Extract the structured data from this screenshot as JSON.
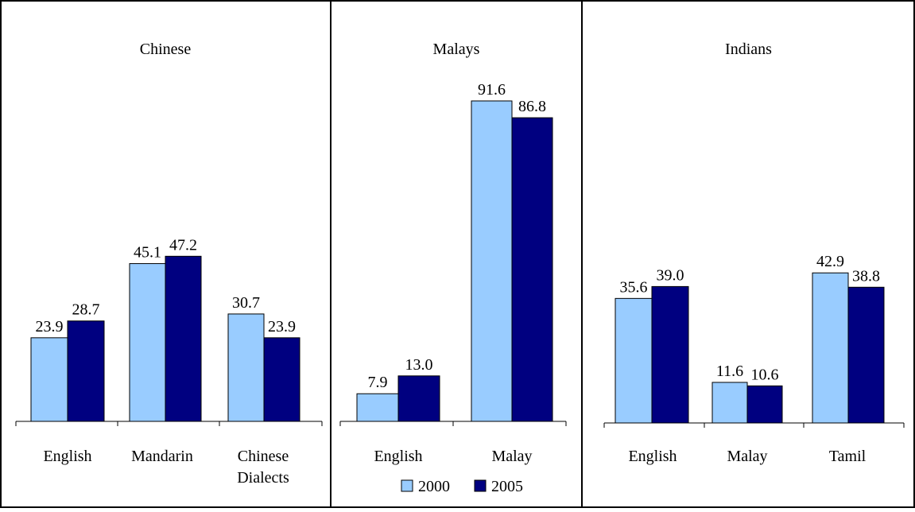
{
  "colors": {
    "series_2000": "#99ccff",
    "series_2005": "#000080",
    "bar_outline": "#000000",
    "border": "#000000"
  },
  "chart_data": [
    {
      "type": "bar",
      "title": "Chinese",
      "categories": [
        "English",
        "Mandarin",
        "Chinese Dialects"
      ],
      "series": [
        {
          "name": "2000",
          "values": [
            23.9,
            45.1,
            30.7
          ]
        },
        {
          "name": "2005",
          "values": [
            28.7,
            47.2,
            23.9
          ]
        }
      ],
      "ylim": [
        0,
        100
      ],
      "grid": false,
      "xlabel": "",
      "ylabel": ""
    },
    {
      "type": "bar",
      "title": "Malays",
      "categories": [
        "English",
        "Malay"
      ],
      "series": [
        {
          "name": "2000",
          "values": [
            7.9,
            91.6
          ]
        },
        {
          "name": "2005",
          "values": [
            13.0,
            86.8
          ]
        }
      ],
      "ylim": [
        0,
        100
      ],
      "grid": false,
      "xlabel": "",
      "ylabel": "",
      "legend": {
        "placement": "bottom",
        "entries": [
          "2000",
          "2005"
        ]
      }
    },
    {
      "type": "bar",
      "title": "Indians",
      "categories": [
        "English",
        "Malay",
        "Tamil"
      ],
      "series": [
        {
          "name": "2000",
          "values": [
            35.6,
            11.6,
            42.9
          ]
        },
        {
          "name": "2005",
          "values": [
            39.0,
            10.6,
            38.8
          ]
        }
      ],
      "ylim": [
        0,
        100
      ],
      "grid": false,
      "xlabel": "",
      "ylabel": ""
    }
  ]
}
